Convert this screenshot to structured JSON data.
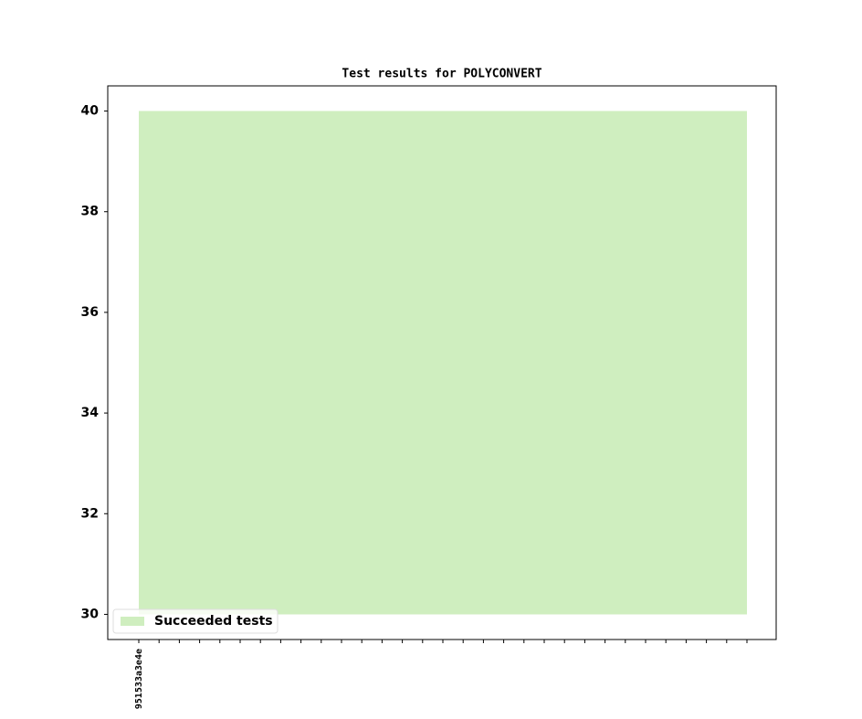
{
  "chart_data": {
    "type": "area",
    "title": "Test results for POLYCONVERT",
    "categories": [
      "951533a3e4e",
      null,
      null,
      null,
      null,
      null,
      null,
      null,
      null,
      null,
      null,
      null,
      null,
      null,
      null,
      null,
      null,
      null,
      null,
      null,
      null,
      null,
      null,
      null,
      null,
      null,
      null,
      null,
      null,
      null,
      null
    ],
    "series": [
      {
        "name": "Succeeded tests",
        "color": "#cfeebf",
        "fill_from": 30,
        "values": [
          40,
          40,
          40,
          40,
          40,
          40,
          40,
          40,
          40,
          40,
          40,
          40,
          40,
          40,
          40,
          40,
          40,
          40,
          40,
          40,
          40,
          40,
          40,
          40,
          40,
          40,
          40,
          40,
          40,
          40,
          40
        ]
      }
    ],
    "ylim": [
      29.5,
      40.5
    ],
    "yticks": [
      30,
      32,
      34,
      36,
      38,
      40
    ],
    "legend": "lower left"
  }
}
